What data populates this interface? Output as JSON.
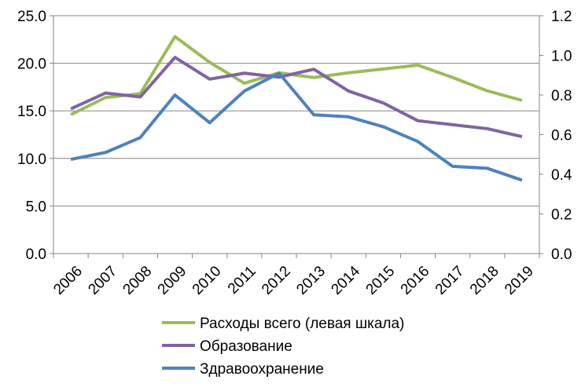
{
  "chart_data": {
    "type": "line",
    "title": "",
    "categories": [
      "2006",
      "2007",
      "2008",
      "2009",
      "2010",
      "2011",
      "2012",
      "2013",
      "2014",
      "2015",
      "2016",
      "2017",
      "2018",
      "2019"
    ],
    "left_axis": {
      "range": [
        0,
        25
      ],
      "ticks": [
        "0.0",
        "5.0",
        "10.0",
        "15.0",
        "20.0",
        "25.0"
      ],
      "tick_values": [
        0,
        5,
        10,
        15,
        20,
        25
      ]
    },
    "right_axis": {
      "range": [
        0,
        1.2
      ],
      "ticks": [
        "0.0",
        "0.2",
        "0.4",
        "0.6",
        "0.8",
        "1.0",
        "1.2"
      ],
      "tick_values": [
        0,
        0.2,
        0.4,
        0.6,
        0.8,
        1.0,
        1.2
      ]
    },
    "grid": true,
    "legend_position": "bottom",
    "series": [
      {
        "name": "Расходы всего (левая шкала)",
        "axis": "left",
        "color": "#9BBB59",
        "values": [
          14.6,
          16.4,
          16.8,
          22.8,
          20.1,
          17.9,
          19.0,
          18.5,
          19.0,
          19.4,
          19.8,
          18.5,
          17.1,
          16.1
        ]
      },
      {
        "name": "Образование",
        "axis": "right",
        "color": "#8064A2",
        "values": [
          0.73,
          0.81,
          0.79,
          0.99,
          0.88,
          0.91,
          0.89,
          0.93,
          0.82,
          0.76,
          0.67,
          0.65,
          0.63,
          0.59
        ]
      },
      {
        "name": "Здравоохранение",
        "axis": "right",
        "color": "#4F81BD",
        "values": [
          0.475,
          0.51,
          0.585,
          0.8,
          0.66,
          0.82,
          0.91,
          0.7,
          0.69,
          0.64,
          0.565,
          0.44,
          0.43,
          0.37
        ]
      }
    ]
  }
}
